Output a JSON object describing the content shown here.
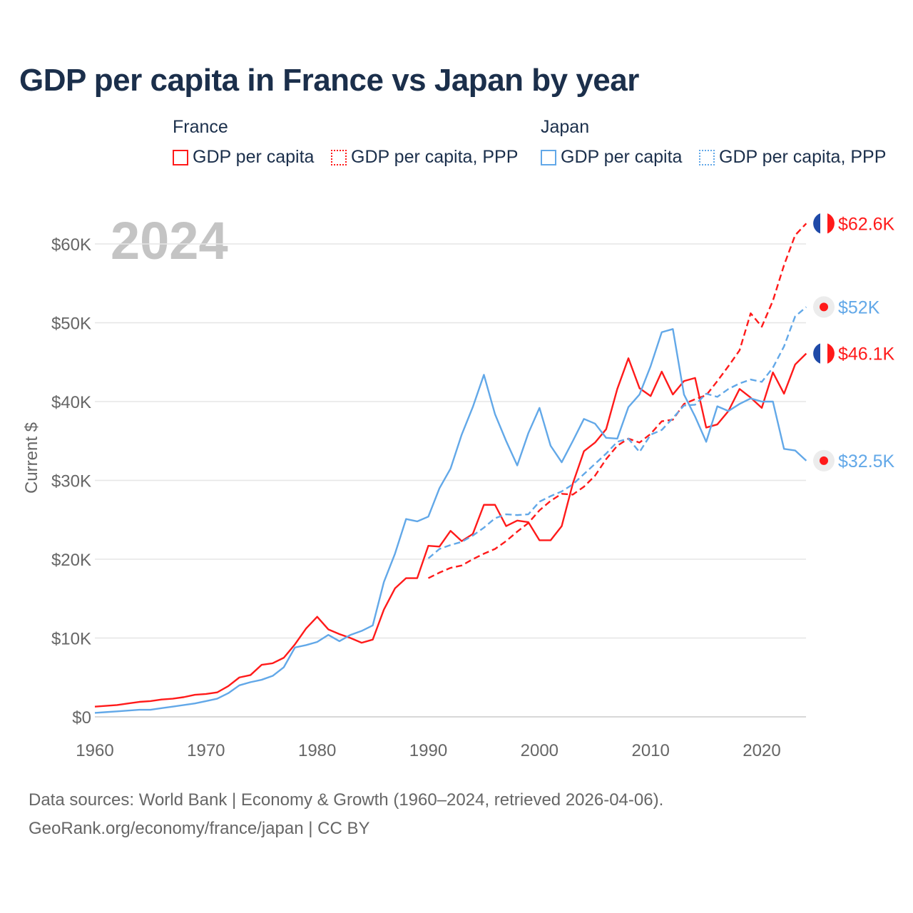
{
  "title": "GDP per capita in France vs Japan by year",
  "legend": {
    "groups": [
      {
        "name": "France",
        "items": [
          "GDP per capita",
          "GDP per capita, PPP"
        ]
      },
      {
        "name": "Japan",
        "items": [
          "GDP per capita",
          "GDP per capita, PPP"
        ]
      }
    ]
  },
  "footer": {
    "line1": "Data sources: World Bank | Economy & Growth (1960–2024, retrieved 2026-04-06).",
    "line2": "GeoRank.org/economy/france/japan | CC BY"
  },
  "colors": {
    "france": "#ff1a1a",
    "japan": "#62a8e8",
    "grid": "#e6e6e6",
    "year": "#c4c4c4"
  },
  "chart_data": {
    "type": "line",
    "title": "GDP per capita in France vs Japan by year",
    "ylabel": "Current $",
    "xlabel": "",
    "year_label": "2024",
    "xlim": [
      1960,
      2024
    ],
    "ylim": [
      0,
      60000
    ],
    "x_ticks": [
      1960,
      1970,
      1980,
      1990,
      2000,
      2010,
      2020
    ],
    "x_tick_labels": [
      "1960",
      "1970",
      "1980",
      "1990",
      "2000",
      "2010",
      "2020"
    ],
    "y_ticks": [
      0,
      10000,
      20000,
      30000,
      40000,
      50000,
      60000
    ],
    "y_tick_labels": [
      "$0",
      "$10K",
      "$20K",
      "$30K",
      "$40K",
      "$50K",
      "$60K"
    ],
    "grid": true,
    "series": [
      {
        "name": "France GDP per capita",
        "country": "france",
        "dashed": false,
        "start": 1960,
        "end_label": "$46.1K",
        "values_k": [
          1.3,
          1.4,
          1.5,
          1.7,
          1.9,
          2.0,
          2.2,
          2.3,
          2.5,
          2.8,
          2.9,
          3.1,
          3.9,
          5.0,
          5.3,
          6.6,
          6.8,
          7.5,
          9.2,
          11.2,
          12.7,
          11.1,
          10.5,
          10.0,
          9.4,
          9.8,
          13.6,
          16.3,
          17.6,
          17.6,
          21.7,
          21.6,
          23.6,
          22.3,
          23.2,
          26.9,
          26.9,
          24.2,
          24.9,
          24.7,
          22.4,
          22.4,
          24.2,
          29.6,
          33.7,
          34.8,
          36.5,
          41.6,
          45.5,
          41.7,
          40.7,
          43.8,
          40.9,
          42.6,
          43.0,
          36.7,
          37.1,
          38.8,
          41.6,
          40.5,
          39.2,
          43.7,
          41.0,
          44.7,
          46.1
        ]
      },
      {
        "name": "France GDP per capita, PPP",
        "country": "france",
        "dashed": true,
        "start": 1990,
        "end_label": "$62.6K",
        "values_k": [
          17.6,
          18.3,
          18.9,
          19.2,
          20.0,
          20.7,
          21.3,
          22.3,
          23.5,
          24.6,
          26.2,
          27.4,
          28.3,
          28.2,
          29.2,
          30.6,
          32.7,
          34.4,
          35.3,
          34.8,
          35.9,
          37.5,
          37.7,
          39.7,
          40.3,
          40.8,
          42.6,
          44.5,
          46.5,
          51.2,
          49.5,
          52.8,
          57.3,
          61.1,
          62.6
        ]
      },
      {
        "name": "Japan GDP per capita",
        "country": "japan",
        "dashed": false,
        "start": 1960,
        "end_label": "$32.5K",
        "values_k": [
          0.5,
          0.6,
          0.7,
          0.8,
          0.9,
          0.9,
          1.1,
          1.3,
          1.5,
          1.7,
          2.0,
          2.3,
          3.0,
          4.0,
          4.4,
          4.7,
          5.2,
          6.3,
          8.8,
          9.1,
          9.5,
          10.4,
          9.6,
          10.4,
          10.9,
          11.6,
          17.1,
          20.7,
          25.1,
          24.8,
          25.4,
          29.0,
          31.5,
          35.8,
          39.3,
          43.4,
          38.4,
          35.0,
          31.9,
          36.0,
          39.2,
          34.4,
          32.3,
          35.0,
          37.8,
          37.2,
          35.4,
          35.3,
          39.3,
          40.9,
          44.5,
          48.8,
          49.2,
          40.9,
          38.1,
          34.9,
          39.4,
          38.8,
          39.7,
          40.4,
          40.0,
          40.0,
          34.0,
          33.8,
          32.5
        ]
      },
      {
        "name": "Japan GDP per capita, PPP",
        "country": "japan",
        "dashed": true,
        "start": 1990,
        "end_label": "$52K",
        "values_k": [
          20.1,
          21.3,
          21.8,
          22.2,
          23.0,
          24.0,
          25.2,
          25.7,
          25.6,
          25.7,
          27.3,
          28.0,
          28.6,
          29.5,
          30.8,
          32.1,
          33.4,
          34.9,
          35.3,
          33.6,
          35.8,
          36.4,
          37.9,
          39.5,
          39.6,
          41.0,
          40.6,
          41.6,
          42.3,
          42.8,
          42.5,
          44.3,
          47.0,
          50.8,
          52.0
        ]
      }
    ]
  }
}
